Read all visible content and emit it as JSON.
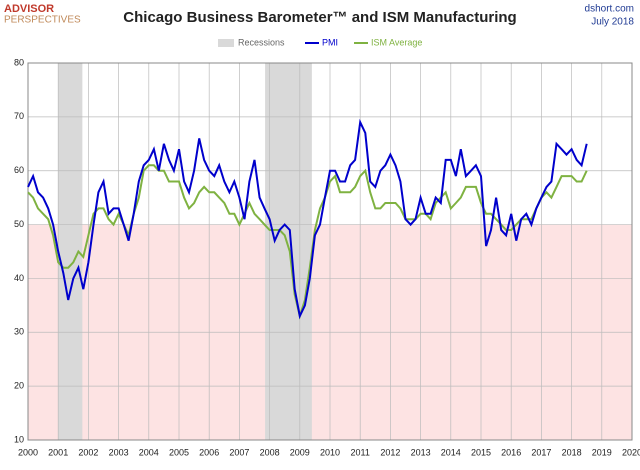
{
  "chart_data": {
    "type": "line",
    "title": "Chicago Business Barometer™ and ISM Manufacturing",
    "source": "dshort.com",
    "date": "July 2018",
    "logo": [
      "ADVISOR",
      "PERSPECTIVES"
    ],
    "recession_label": "Recessions",
    "recessions": [
      [
        2001.0,
        2001.8
      ],
      [
        2007.85,
        2009.4
      ]
    ],
    "shade_below": 50,
    "x": [
      2000,
      2000.17,
      2000.33,
      2000.5,
      2000.67,
      2000.83,
      2001,
      2001.17,
      2001.33,
      2001.5,
      2001.67,
      2001.83,
      2002,
      2002.17,
      2002.33,
      2002.5,
      2002.67,
      2002.83,
      2003,
      2003.17,
      2003.33,
      2003.5,
      2003.67,
      2003.83,
      2004,
      2004.17,
      2004.33,
      2004.5,
      2004.67,
      2004.83,
      2005,
      2005.17,
      2005.33,
      2005.5,
      2005.67,
      2005.83,
      2006,
      2006.17,
      2006.33,
      2006.5,
      2006.67,
      2006.83,
      2007,
      2007.17,
      2007.33,
      2007.5,
      2007.67,
      2007.83,
      2008,
      2008.17,
      2008.33,
      2008.5,
      2008.67,
      2008.83,
      2009,
      2009.17,
      2009.33,
      2009.5,
      2009.67,
      2009.83,
      2010,
      2010.17,
      2010.33,
      2010.5,
      2010.67,
      2010.83,
      2011,
      2011.17,
      2011.33,
      2011.5,
      2011.67,
      2011.83,
      2012,
      2012.17,
      2012.33,
      2012.5,
      2012.67,
      2012.83,
      2013,
      2013.17,
      2013.33,
      2013.5,
      2013.67,
      2013.83,
      2014,
      2014.17,
      2014.33,
      2014.5,
      2014.67,
      2014.83,
      2015,
      2015.17,
      2015.33,
      2015.5,
      2015.67,
      2015.83,
      2016,
      2016.17,
      2016.33,
      2016.5,
      2016.67,
      2016.83,
      2017,
      2017.17,
      2017.33,
      2017.5,
      2017.67,
      2017.83,
      2018,
      2018.17,
      2018.33,
      2018.5
    ],
    "series": [
      {
        "name": "ISM Average",
        "color": "#7fb241",
        "values": [
          56,
          55,
          53,
          52,
          51,
          48,
          43,
          42,
          42,
          43,
          45,
          44,
          48,
          52,
          53,
          53,
          51,
          50,
          52,
          50,
          48,
          52,
          55,
          60,
          61,
          61,
          60,
          60,
          58,
          58,
          58,
          55,
          53,
          54,
          56,
          57,
          56,
          56,
          55,
          54,
          52,
          52,
          50,
          52,
          54,
          52,
          51,
          50,
          49,
          49,
          49,
          48,
          45,
          37,
          33,
          36,
          42,
          49,
          53,
          55,
          58,
          59,
          56,
          56,
          56,
          57,
          59,
          60,
          56,
          53,
          53,
          54,
          54,
          54,
          53,
          51,
          51,
          51,
          52,
          52,
          51,
          54,
          55,
          56,
          53,
          54,
          55,
          57,
          57,
          57,
          54,
          52,
          52,
          51,
          50,
          49,
          49,
          50,
          51,
          51,
          51,
          53,
          55,
          56,
          55,
          57,
          59,
          59,
          59,
          58,
          58,
          60
        ]
      },
      {
        "name": "PMI",
        "color": "#0000cc",
        "values": [
          57,
          59,
          56,
          55,
          53,
          50,
          45,
          41,
          36,
          40,
          42,
          38,
          43,
          50,
          56,
          58,
          52,
          53,
          53,
          50,
          47,
          52,
          58,
          61,
          62,
          64,
          60,
          65,
          62,
          60,
          64,
          58,
          56,
          60,
          66,
          62,
          60,
          59,
          61,
          58,
          56,
          58,
          55,
          51,
          58,
          62,
          55,
          53,
          51,
          47,
          49,
          50,
          49,
          38,
          33,
          35,
          40,
          48,
          50,
          55,
          60,
          60,
          58,
          58,
          61,
          62,
          69,
          67,
          58,
          57,
          60,
          61,
          63,
          61,
          58,
          51,
          50,
          51,
          55,
          52,
          52,
          55,
          54,
          62,
          62,
          59,
          64,
          59,
          60,
          61,
          59,
          46,
          49,
          55,
          49,
          48,
          52,
          47,
          51,
          52,
          50,
          53,
          55,
          57,
          58,
          65,
          64,
          63,
          64,
          62,
          61,
          65
        ]
      }
    ],
    "xlim": [
      2000,
      2020
    ],
    "xticks": [
      2000,
      2001,
      2002,
      2003,
      2004,
      2005,
      2006,
      2007,
      2008,
      2009,
      2010,
      2011,
      2012,
      2013,
      2014,
      2015,
      2016,
      2017,
      2018,
      2019,
      2020
    ],
    "ylim": [
      10,
      80
    ],
    "yticks": [
      10,
      20,
      30,
      40,
      50,
      60,
      70,
      80
    ],
    "grid": true
  }
}
